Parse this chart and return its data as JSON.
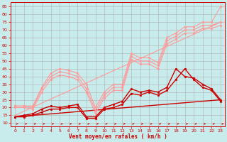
{
  "bg_color": "#c8ecec",
  "grid_color": "#b0b0b0",
  "axis_color": "#cc0000",
  "xlabel": "Vent moyen/en rafales ( km/h )",
  "xlabel_color": "#cc0000",
  "tick_color": "#cc0000",
  "xlim": [
    -0.5,
    23.5
  ],
  "ylim": [
    8,
    88
  ],
  "yticks": [
    10,
    15,
    20,
    25,
    30,
    35,
    40,
    45,
    50,
    55,
    60,
    65,
    70,
    75,
    80,
    85
  ],
  "xticks": [
    0,
    1,
    2,
    3,
    4,
    5,
    6,
    7,
    8,
    9,
    10,
    11,
    12,
    13,
    14,
    15,
    16,
    17,
    18,
    19,
    20,
    21,
    22,
    23
  ],
  "lines": [
    {
      "x": [
        0,
        1,
        2,
        3,
        4,
        5,
        6,
        7,
        8,
        9,
        10,
        11,
        12,
        13,
        14,
        15,
        16,
        17,
        18,
        19,
        20,
        21,
        22,
        23
      ],
      "y": [
        21,
        21,
        21,
        33,
        42,
        45,
        44,
        42,
        35,
        20,
        30,
        35,
        35,
        55,
        52,
        52,
        49,
        65,
        68,
        72,
        72,
        75,
        75,
        85
      ],
      "color": "#ff9999",
      "lw": 0.8,
      "marker": "o",
      "ms": 2.0
    },
    {
      "x": [
        0,
        1,
        2,
        3,
        4,
        5,
        6,
        7,
        8,
        9,
        10,
        11,
        12,
        13,
        14,
        15,
        16,
        17,
        18,
        19,
        20,
        21,
        22,
        23
      ],
      "y": [
        21,
        21,
        20,
        32,
        40,
        43,
        42,
        40,
        32,
        18,
        28,
        33,
        33,
        53,
        50,
        50,
        47,
        63,
        66,
        70,
        70,
        73,
        73,
        75
      ],
      "color": "#ff9999",
      "lw": 0.8,
      "marker": "o",
      "ms": 2.0
    },
    {
      "x": [
        0,
        1,
        2,
        3,
        4,
        5,
        6,
        7,
        8,
        9,
        10,
        11,
        12,
        13,
        14,
        15,
        16,
        17,
        18,
        19,
        20,
        21,
        22,
        23
      ],
      "y": [
        20,
        20,
        19,
        30,
        38,
        41,
        40,
        38,
        30,
        16,
        26,
        31,
        31,
        51,
        48,
        48,
        45,
        61,
        64,
        68,
        68,
        71,
        71,
        73
      ],
      "color": "#ff9999",
      "lw": 0.8,
      "marker": "o",
      "ms": 2.0
    },
    {
      "x": [
        0,
        23
      ],
      "y": [
        15,
        75
      ],
      "color": "#ff9999",
      "lw": 0.8,
      "marker": null,
      "ms": 0
    },
    {
      "x": [
        0,
        1,
        2,
        3,
        4,
        5,
        6,
        7,
        8,
        9,
        10,
        11,
        12,
        13,
        14,
        15,
        16,
        17,
        18,
        19,
        20,
        21,
        22,
        23
      ],
      "y": [
        14,
        15,
        16,
        19,
        21,
        20,
        21,
        22,
        14,
        14,
        20,
        22,
        24,
        32,
        30,
        31,
        30,
        33,
        45,
        40,
        39,
        35,
        32,
        25
      ],
      "color": "#cc0000",
      "lw": 1.0,
      "marker": "o",
      "ms": 2.0
    },
    {
      "x": [
        0,
        23
      ],
      "y": [
        14,
        25
      ],
      "color": "#cc0000",
      "lw": 1.0,
      "marker": null,
      "ms": 0
    },
    {
      "x": [
        0,
        1,
        2,
        3,
        4,
        5,
        6,
        7,
        8,
        9,
        10,
        11,
        12,
        13,
        14,
        15,
        16,
        17,
        18,
        19,
        20,
        21,
        22,
        23
      ],
      "y": [
        14,
        14,
        15,
        17,
        19,
        19,
        20,
        20,
        13,
        13,
        19,
        20,
        22,
        29,
        28,
        30,
        28,
        31,
        38,
        45,
        38,
        33,
        31,
        24
      ],
      "color": "#cc0000",
      "lw": 1.0,
      "marker": "o",
      "ms": 2.0
    }
  ],
  "wind_arrows": {
    "y": 9.5,
    "color": "#cc0000",
    "count": 24
  }
}
